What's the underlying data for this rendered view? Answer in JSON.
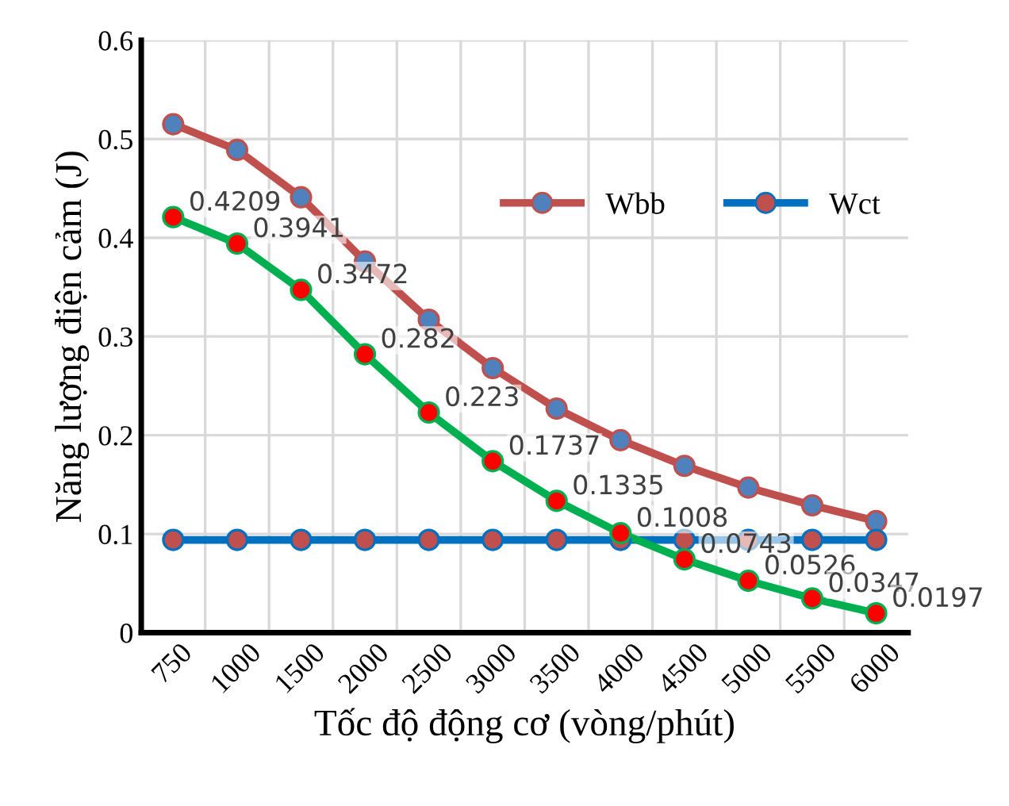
{
  "chart_data": {
    "type": "line",
    "xlabel": "Tốc độ động cơ (vòng/phút)",
    "ylabel": "Năng lượng điện cảm (J)",
    "categories": [
      "750",
      "1000",
      "1500",
      "2000",
      "2500",
      "3000",
      "3500",
      "4000",
      "4500",
      "5000",
      "5500",
      "6000"
    ],
    "series": [
      {
        "name": "Wbb",
        "color": "#c0504d",
        "colors": [
          "#4f81bd",
          "#4f81bd",
          "#4f81bd",
          "#4f81bd",
          "#4f81bd",
          "#4f81bd",
          "#4f81bd",
          "#4f81bd",
          "#4f81bd",
          "#4f81bd",
          "#4f81bd",
          "#4f81bd"
        ],
        "values": [
          0.515,
          0.489,
          0.441,
          0.376,
          0.317,
          0.268,
          0.227,
          0.195,
          0.169,
          0.147,
          0.129,
          0.113
        ]
      },
      {
        "name": "Wct",
        "color": "#0070c0",
        "colors": [
          "#c0504d",
          "#c0504d",
          "#c0504d",
          "#c0504d",
          "#c0504d",
          "#c0504d",
          "#c0504d",
          "#c0504d",
          "#c0504d",
          "#c0504d",
          "#c0504d",
          "#c0504d"
        ],
        "values": [
          0.094,
          0.094,
          0.094,
          0.094,
          0.094,
          0.094,
          0.094,
          0.094,
          0.094,
          0.094,
          0.094,
          0.094
        ]
      },
      {
        "color": "#00b050",
        "colors": [
          "#ff0000",
          "#ff0000",
          "#ff0000",
          "#ff0000",
          "#ff0000",
          "#ff0000",
          "#ff0000",
          "#ff0000",
          "#ff0000",
          "#ff0000",
          "#ff0000",
          "#ff0000"
        ],
        "values": [
          0.4209,
          0.3941,
          0.3472,
          0.282,
          0.223,
          0.1737,
          0.1335,
          0.1008,
          0.0743,
          0.0526,
          0.0347,
          0.0197
        ],
        "value_labels": [
          "0.4209",
          "0.3941",
          "0.3472",
          "0.282",
          "0.223",
          "0.1737",
          "0.1335",
          "0.1008",
          "0.0743",
          "0.0526",
          "0.0347",
          "0.0197"
        ]
      }
    ],
    "ylim": [
      0,
      0.6
    ],
    "yticks": [
      0,
      0.1,
      0.2,
      0.3,
      0.4,
      0.5,
      0.6
    ],
    "grid": true,
    "legend": "right",
    "marker": "circle",
    "line_style": "solid"
  }
}
